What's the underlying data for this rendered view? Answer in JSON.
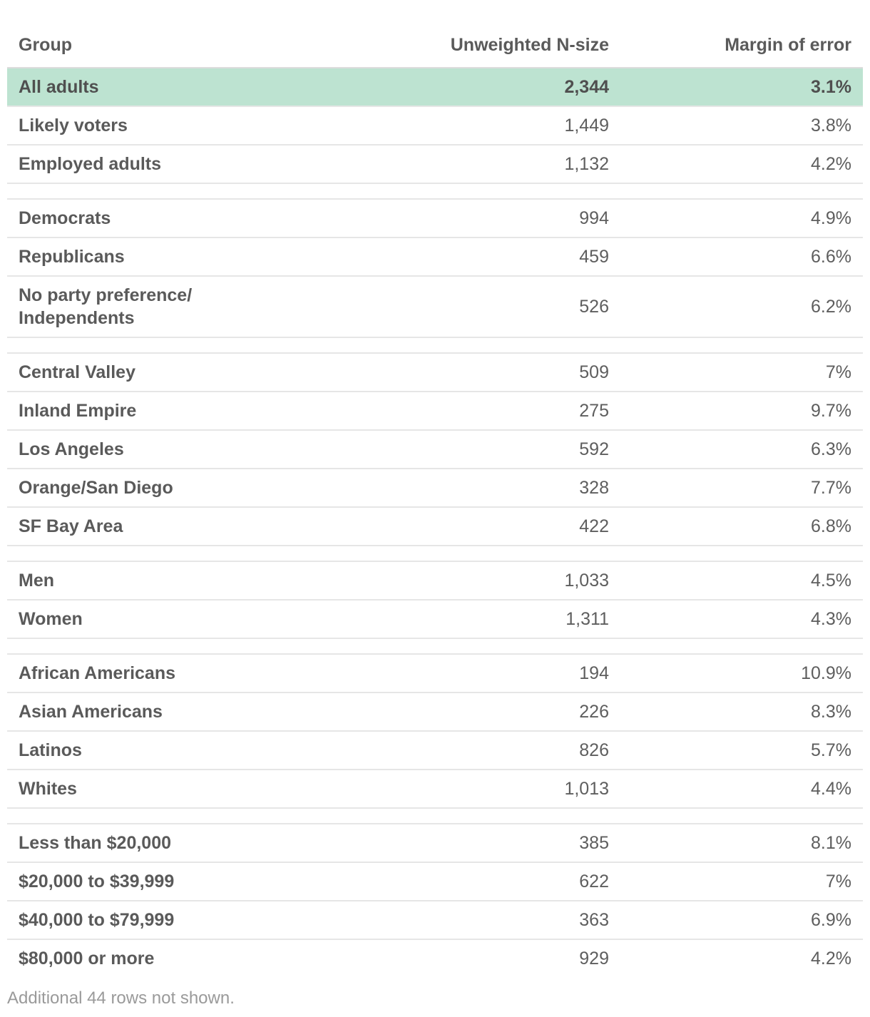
{
  "table": {
    "headers": {
      "group": "Group",
      "n": "Unweighted N-size",
      "moe": "Margin of error"
    },
    "rows": [
      {
        "group": "All adults",
        "n": "2,344",
        "moe": "3.1%"
      },
      {
        "group": "Likely voters",
        "n": "1,449",
        "moe": "3.8%"
      },
      {
        "group": "Employed adults",
        "n": "1,132",
        "moe": "4.2%"
      },
      {
        "group": "Democrats",
        "n": "994",
        "moe": "4.9%"
      },
      {
        "group": "Republicans",
        "n": "459",
        "moe": "6.6%"
      },
      {
        "group": "No party preference/ Independents",
        "n": "526",
        "moe": "6.2%"
      },
      {
        "group": "Central Valley",
        "n": "509",
        "moe": "7%"
      },
      {
        "group": "Inland Empire",
        "n": "275",
        "moe": "9.7%"
      },
      {
        "group": "Los Angeles",
        "n": "592",
        "moe": "6.3%"
      },
      {
        "group": "Orange/San Diego",
        "n": "328",
        "moe": "7.7%"
      },
      {
        "group": "SF Bay Area",
        "n": "422",
        "moe": "6.8%"
      },
      {
        "group": "Men",
        "n": "1,033",
        "moe": "4.5%"
      },
      {
        "group": "Women",
        "n": "1,311",
        "moe": "4.3%"
      },
      {
        "group": "African Americans",
        "n": "194",
        "moe": "10.9%"
      },
      {
        "group": "Asian Americans",
        "n": "226",
        "moe": "8.3%"
      },
      {
        "group": "Latinos",
        "n": "826",
        "moe": "5.7%"
      },
      {
        "group": "Whites",
        "n": "1,013",
        "moe": "4.4%"
      },
      {
        "group": "Less than $20,000",
        "n": "385",
        "moe": "8.1%"
      },
      {
        "group": "$20,000 to $39,999",
        "n": "622",
        "moe": "7%"
      },
      {
        "group": "$40,000 to $79,999",
        "n": "363",
        "moe": "6.9%"
      },
      {
        "group": "$80,000 or more",
        "n": "929",
        "moe": "4.2%"
      }
    ]
  },
  "footnote": "Additional 44 rows not shown.",
  "colors": {
    "highlight": "#bde3d1",
    "text": "#5a5a5a",
    "footnote": "#9a9a9a"
  }
}
